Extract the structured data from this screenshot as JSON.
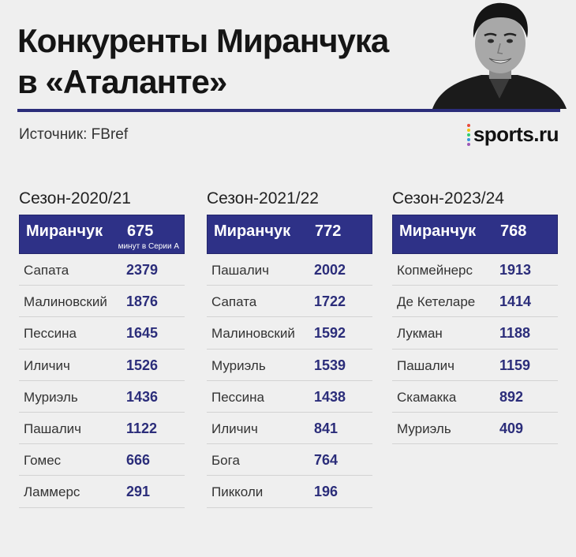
{
  "header": {
    "title_line1": "Конкуренты Миранчука",
    "title_line2": "в «Аталанте»",
    "source": "Источник: FBref",
    "logo_text": "sports.ru",
    "logo_dot_colors": [
      "#e74c3c",
      "#f1c40f",
      "#2ecc71",
      "#3498db",
      "#9b59b6"
    ]
  },
  "seasons": [
    {
      "label": "Сезон-2020/21",
      "highlight": {
        "name": "Миранчук",
        "value": "675",
        "note": "минут в Серии А"
      },
      "rows": [
        {
          "name": "Сапата",
          "value": "2379"
        },
        {
          "name": "Малиновский",
          "value": "1876"
        },
        {
          "name": "Пессина",
          "value": "1645"
        },
        {
          "name": "Иличич",
          "value": "1526"
        },
        {
          "name": "Муриэль",
          "value": "1436"
        },
        {
          "name": "Пашалич",
          "value": "1122"
        },
        {
          "name": "Гомес",
          "value": "666"
        },
        {
          "name": "Ламмерс",
          "value": "291"
        }
      ]
    },
    {
      "label": "Сезон-2021/22",
      "highlight": {
        "name": "Миранчук",
        "value": "772"
      },
      "rows": [
        {
          "name": "Пашалич",
          "value": "2002"
        },
        {
          "name": "Сапата",
          "value": "1722"
        },
        {
          "name": "Малиновский",
          "value": "1592"
        },
        {
          "name": "Муриэль",
          "value": "1539"
        },
        {
          "name": "Пессина",
          "value": "1438"
        },
        {
          "name": "Иличич",
          "value": "841"
        },
        {
          "name": "Бога",
          "value": "764"
        },
        {
          "name": "Пикколи",
          "value": "196"
        }
      ]
    },
    {
      "label": "Сезон-2023/24",
      "highlight": {
        "name": "Миранчук",
        "value": "768"
      },
      "rows": [
        {
          "name": "Копмейнерс",
          "value": "1913"
        },
        {
          "name": "Де Кетеларе",
          "value": "1414"
        },
        {
          "name": "Лукман",
          "value": "1188"
        },
        {
          "name": "Пашалич",
          "value": "1159"
        },
        {
          "name": "Скамакка",
          "value": "892"
        },
        {
          "name": "Муриэль",
          "value": "409"
        }
      ]
    }
  ]
}
